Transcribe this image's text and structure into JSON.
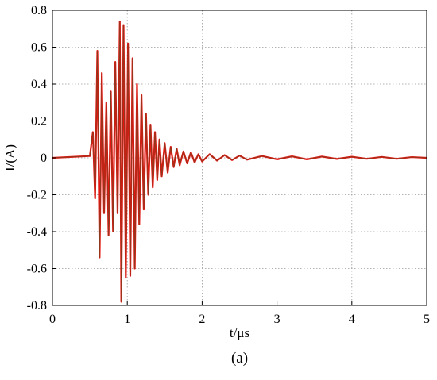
{
  "chart_data": {
    "type": "line",
    "panel_label": "(a)",
    "xlabel": "t/μs",
    "ylabel": "I/(A)",
    "xlim": [
      0,
      5
    ],
    "ylim": [
      -0.8,
      0.8
    ],
    "x_ticks": [
      0,
      1,
      2,
      3,
      4,
      5
    ],
    "x_tick_labels": [
      "0",
      "1",
      "2",
      "3",
      "4",
      "5"
    ],
    "y_ticks": [
      0.8,
      0.6,
      0.4,
      0.2,
      0,
      -0.2,
      -0.4,
      -0.6,
      -0.8
    ],
    "y_tick_labels": [
      "0.8",
      "0.6",
      "0.4",
      "0.2",
      "0",
      "-0.2",
      "-0.4",
      "-0.6",
      "-0.8"
    ],
    "grid": true,
    "grid_style": "dotted",
    "colors": {
      "trace": "#e8140f",
      "trace_overlay": "#8c3a1f",
      "axis": "#000000",
      "grid": "#9a9a9a"
    },
    "series": [
      {
        "x": [
          0,
          0.5,
          0.54,
          0.57,
          0.6,
          0.63,
          0.66,
          0.69,
          0.72,
          0.75,
          0.78,
          0.81,
          0.84,
          0.87,
          0.9,
          0.92,
          0.95,
          0.98,
          1.01,
          1.04,
          1.07,
          1.1,
          1.13,
          1.16,
          1.19,
          1.22,
          1.25,
          1.28,
          1.31,
          1.34,
          1.37,
          1.4,
          1.43,
          1.46,
          1.5,
          1.54,
          1.58,
          1.62,
          1.66,
          1.7,
          1.75,
          1.8,
          1.85,
          1.9,
          1.95,
          2.0,
          2.1,
          2.2,
          2.3,
          2.4,
          2.5,
          2.6,
          2.8,
          3.0,
          3.2,
          3.4,
          3.6,
          3.8,
          4.0,
          4.2,
          4.4,
          4.6,
          4.8,
          5.0
        ],
        "y": [
          0,
          0.01,
          0.14,
          -0.22,
          0.58,
          -0.54,
          0.46,
          -0.3,
          0.3,
          -0.42,
          0.36,
          -0.4,
          0.52,
          -0.3,
          0.74,
          -0.78,
          0.72,
          -0.65,
          0.62,
          -0.64,
          0.54,
          -0.6,
          0.4,
          -0.36,
          0.34,
          -0.28,
          0.24,
          -0.2,
          0.18,
          -0.16,
          0.14,
          -0.12,
          0.1,
          -0.1,
          0.08,
          -0.08,
          0.06,
          -0.05,
          0.05,
          -0.04,
          0.035,
          -0.03,
          0.03,
          -0.025,
          0.02,
          -0.02,
          0.02,
          -0.015,
          0.015,
          -0.012,
          0.012,
          -0.01,
          0.01,
          -0.008,
          0.008,
          -0.008,
          0.007,
          -0.006,
          0.006,
          -0.005,
          0.005,
          -0.005,
          0.004,
          0
        ]
      }
    ]
  }
}
